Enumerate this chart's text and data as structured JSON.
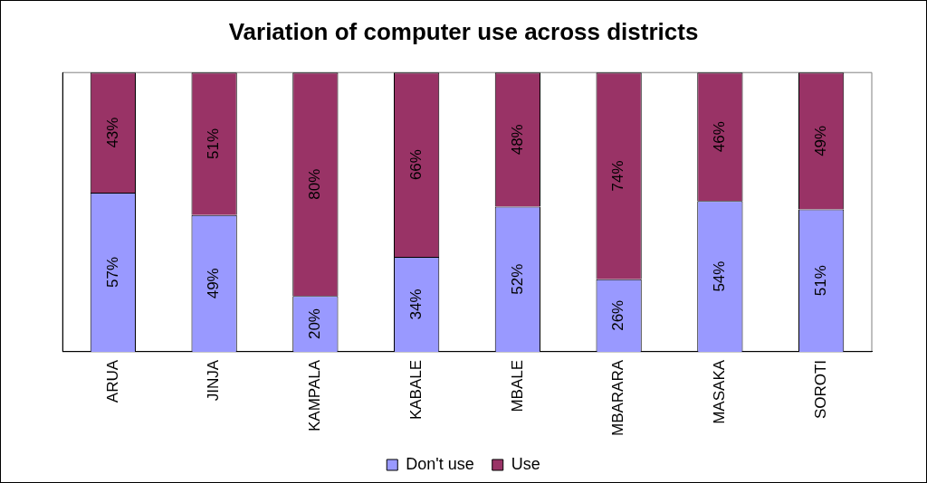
{
  "chart_data": {
    "type": "bar",
    "title": "Variation of computer use across districts",
    "categories": [
      "ARUA",
      "JINJA",
      "KAMPALA",
      "KABALE",
      "MBALE",
      "MBARARA",
      "MASAKA",
      "SOROTI"
    ],
    "series": [
      {
        "name": "Don't use",
        "color": "#9999ff",
        "values": [
          57,
          49,
          20,
          34,
          52,
          26,
          54,
          51
        ],
        "value_labels": [
          "57%",
          "49%",
          "20%",
          "34%",
          "52%",
          "26%",
          "54%",
          "51%"
        ]
      },
      {
        "name": "Use",
        "color": "#993366",
        "values": [
          43,
          51,
          80,
          66,
          48,
          74,
          46,
          49
        ],
        "value_labels": [
          "43%",
          "51%",
          "80%",
          "66%",
          "48%",
          "74%",
          "46%",
          "49%"
        ]
      }
    ],
    "stacked": true,
    "tick_labels": "x",
    "grid": false,
    "legend": "bottom"
  }
}
